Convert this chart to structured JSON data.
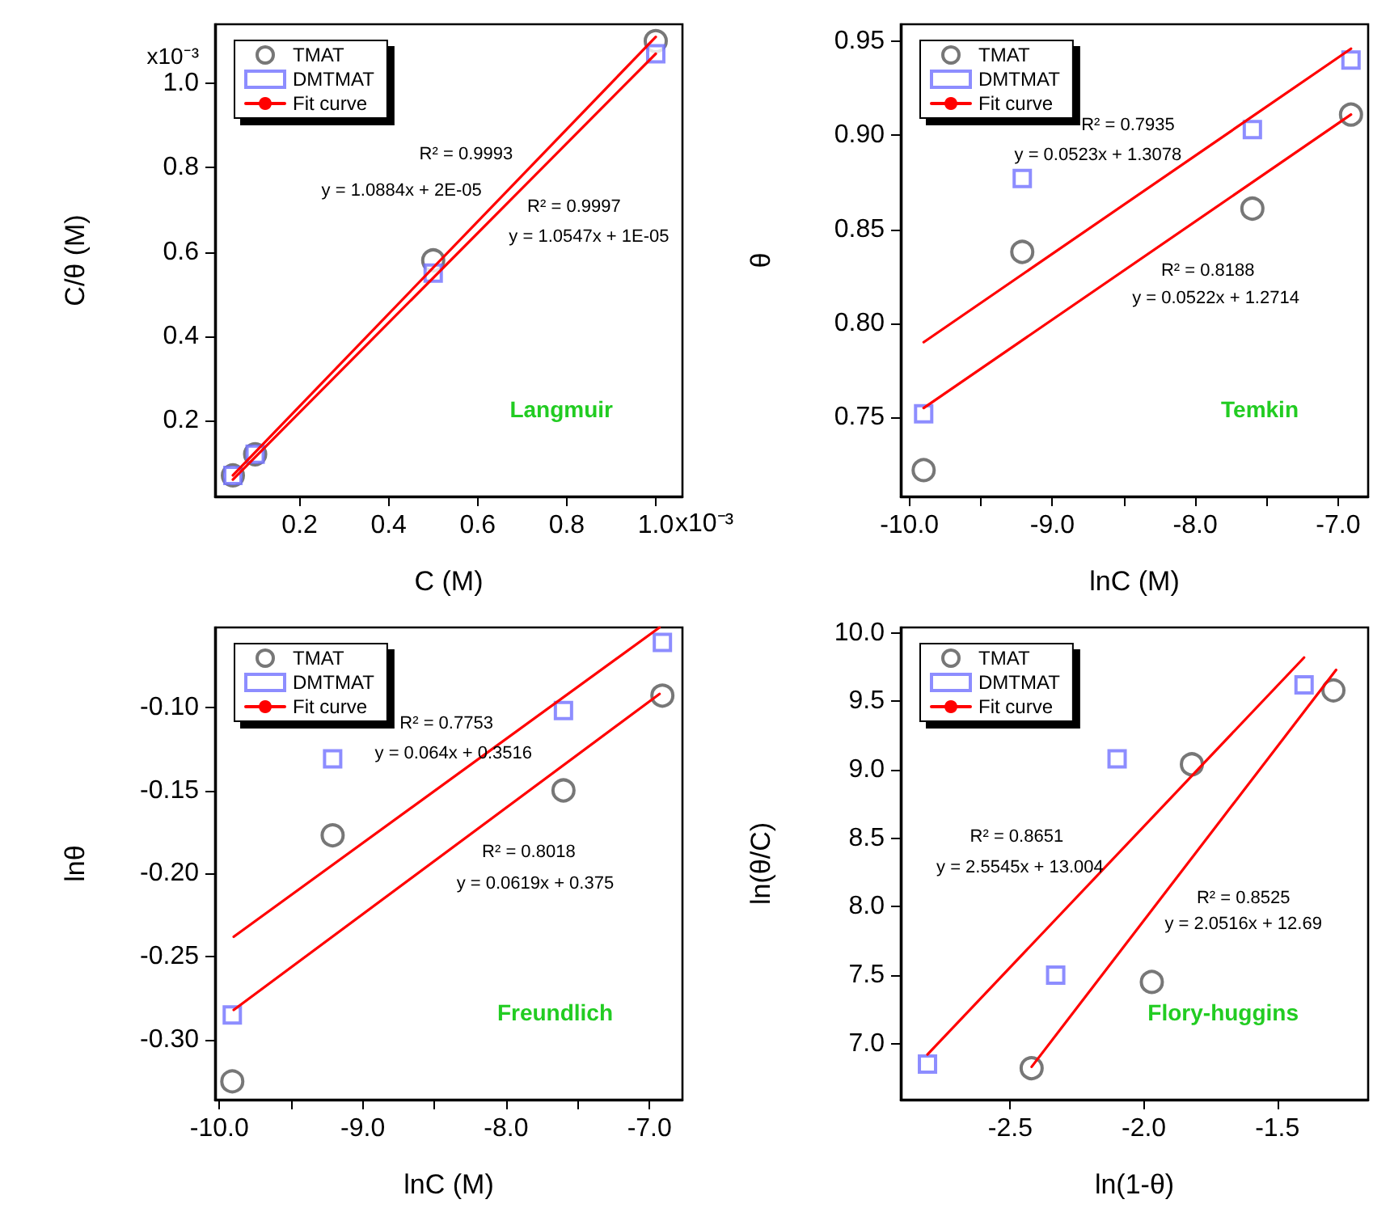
{
  "chart_data": [
    {
      "type": "scatter",
      "title": "Langmuir",
      "xlabel": "C (M)",
      "ylabel": "C/θ (M)",
      "legend": "top left",
      "xlim": [
        0.01,
        1.06
      ],
      "xticks": [
        0.2,
        0.4,
        0.6,
        0.8,
        {
          "value": 1,
          "label": "1.0"
        }
      ],
      "ylim": [
        0.02,
        1.14
      ],
      "yticks": [
        0.2,
        0.4,
        0.6,
        0.8,
        {
          "value": 1,
          "label": "1.0"
        }
      ],
      "series": [
        {
          "name": "TMAT",
          "type": "scatter",
          "marker": "circle",
          "color": "#555555",
          "x": [
            0.05,
            0.1,
            0.5,
            1.0
          ],
          "values": [
            0.07,
            0.12,
            0.58,
            1.1
          ]
        },
        {
          "name": "DMTMAT",
          "type": "scatter",
          "marker": "square",
          "color": "#7070ff",
          "x": [
            0.05,
            0.1,
            0.5,
            1.0
          ],
          "values": [
            0.07,
            0.12,
            0.55,
            1.07
          ]
        },
        {
          "name": "Fit curve",
          "type": "line",
          "marker": "none",
          "color": "#ff0000",
          "x": [
            0.05,
            1.0
          ],
          "values": [
            0.07,
            1.11
          ]
        },
        {
          "type": "line",
          "marker": "none",
          "color": "#ff0000",
          "x": [
            0.05,
            1.0
          ],
          "values": [
            0.06,
            1.07
          ]
        }
      ],
      "annotations": [
        "R² = 0.9993",
        "y = 1.0884x + 2E-05",
        "R² = 0.9997",
        "y = 1.0547x + 1E-05",
        "x10⁻³",
        "x10⁻³"
      ]
    },
    {
      "type": "scatter",
      "title": "Temkin",
      "xlabel": "lnC (M)",
      "ylabel": "θ",
      "legend": "top left",
      "xlim": [
        -10.06,
        -6.79
      ],
      "xticks": [
        {
          "value": -10,
          "label": "-10.0"
        },
        {
          "value": -9.5,
          "label": null
        },
        {
          "value": -9,
          "label": "-9.0"
        },
        {
          "value": -8.5,
          "label": null
        },
        {
          "value": -8,
          "label": "-8.0"
        },
        {
          "value": -7.5,
          "label": null
        },
        {
          "value": -7,
          "label": "-7.0"
        }
      ],
      "ylim": [
        0.708,
        0.959
      ],
      "yticks": [
        0.75,
        {
          "value": 0.8,
          "label": "0.80"
        },
        0.85,
        {
          "value": 0.9,
          "label": "0.90"
        },
        0.95
      ],
      "series": [
        {
          "name": "TMAT",
          "type": "scatter",
          "marker": "circle",
          "color": "#555555",
          "x": [
            -9.9,
            -9.21,
            -7.6,
            -6.91
          ],
          "values": [
            0.722,
            0.838,
            0.861,
            0.911
          ]
        },
        {
          "name": "DMTMAT",
          "type": "scatter",
          "marker": "square",
          "color": "#7070ff",
          "x": [
            -9.9,
            -9.21,
            -7.6,
            -6.91
          ],
          "values": [
            0.752,
            0.877,
            0.903,
            0.94
          ]
        },
        {
          "name": "Fit curve",
          "type": "line",
          "marker": "none",
          "color": "#ff0000",
          "x": [
            -9.9,
            -6.91
          ],
          "values": [
            0.79,
            0.946
          ]
        },
        {
          "type": "line",
          "marker": "none",
          "color": "#ff0000",
          "x": [
            -9.9,
            -6.91
          ],
          "values": [
            0.755,
            0.911
          ]
        }
      ],
      "annotations": [
        "R² = 0.7935",
        "y = 0.0523x + 1.3078",
        "R² = 0.8188",
        "y = 0.0522x + 1.2714"
      ]
    },
    {
      "type": "scatter",
      "title": "Freundlich",
      "xlabel": "lnC (M)",
      "ylabel": "lnθ",
      "legend": "top left",
      "xlim": [
        -10.03,
        -6.77
      ],
      "xticks": [
        {
          "value": -10,
          "label": "-10.0"
        },
        {
          "value": -9.5,
          "label": null
        },
        {
          "value": -9,
          "label": "-9.0"
        },
        {
          "value": -8.5,
          "label": null
        },
        {
          "value": -8,
          "label": "-8.0"
        },
        {
          "value": -7.5,
          "label": null
        },
        {
          "value": -7,
          "label": "-7.0"
        }
      ],
      "ylim": [
        -0.336,
        -0.052
      ],
      "yticks": [
        {
          "value": -0.3,
          "label": "-0.30"
        },
        -0.25,
        {
          "value": -0.2,
          "label": "-0.20"
        },
        -0.15,
        {
          "value": -0.1,
          "label": "-0.10"
        }
      ],
      "series": [
        {
          "name": "TMAT",
          "type": "scatter",
          "marker": "circle",
          "color": "#555555",
          "x": [
            -9.91,
            -9.21,
            -7.6,
            -6.91
          ],
          "values": [
            -0.325,
            -0.177,
            -0.15,
            -0.093
          ]
        },
        {
          "name": "DMTMAT",
          "type": "scatter",
          "marker": "square",
          "color": "#7070ff",
          "x": [
            -9.91,
            -9.21,
            -7.6,
            -6.91
          ],
          "values": [
            -0.285,
            -0.131,
            -0.102,
            -0.061
          ]
        },
        {
          "name": "Fit curve",
          "type": "line",
          "marker": "none",
          "color": "#ff0000",
          "x": [
            -9.9,
            -6.93
          ],
          "values": [
            -0.238,
            -0.052
          ]
        },
        {
          "type": "line",
          "marker": "none",
          "color": "#ff0000",
          "x": [
            -9.9,
            -6.93
          ],
          "values": [
            -0.282,
            -0.092
          ]
        }
      ],
      "annotations": [
        "R² = 0.7753",
        "y = 0.064x + 0.3516",
        "R² = 0.8018",
        "y = 0.0619x + 0.375"
      ]
    },
    {
      "type": "scatter",
      "title": "Flory-huggins",
      "xlabel": "ln(1-θ)",
      "ylabel": "ln(θ/C)",
      "legend": "top left",
      "xlim": [
        -2.91,
        -1.16
      ],
      "xticks": [
        -2.5,
        {
          "value": -2,
          "label": "-2.0"
        },
        -1.5
      ],
      "ylim": [
        6.59,
        10.04
      ],
      "yticks": [
        {
          "value": 7,
          "label": "7.0"
        },
        7.5,
        {
          "value": 8,
          "label": "8.0"
        },
        8.5,
        {
          "value": 9,
          "label": "9.0"
        },
        9.5,
        {
          "value": 10,
          "label": "10.0"
        }
      ],
      "series": [
        {
          "name": "TMAT",
          "type": "scatter",
          "marker": "circle",
          "color": "#555555",
          "x": [
            -2.42,
            -1.97,
            -1.82,
            -1.29
          ],
          "values": [
            6.82,
            7.45,
            9.04,
            9.58
          ]
        },
        {
          "name": "DMTMAT",
          "type": "scatter",
          "marker": "square",
          "color": "#7070ff",
          "x": [
            -2.81,
            -2.33,
            -2.1,
            -1.4
          ],
          "values": [
            6.85,
            7.5,
            9.08,
            9.62
          ]
        },
        {
          "name": "Fit curve",
          "type": "line",
          "marker": "none",
          "color": "#ff0000",
          "x": [
            -2.81,
            -1.4
          ],
          "values": [
            6.92,
            9.82
          ]
        },
        {
          "type": "line",
          "marker": "none",
          "color": "#ff0000",
          "x": [
            -2.42,
            -1.28
          ],
          "values": [
            6.83,
            9.73
          ]
        }
      ],
      "annotations": [
        "R² = 0.8651",
        "y = 2.5545x + 13.004",
        "R² = 0.8525",
        "y = 2.0516x + 12.69"
      ]
    }
  ]
}
